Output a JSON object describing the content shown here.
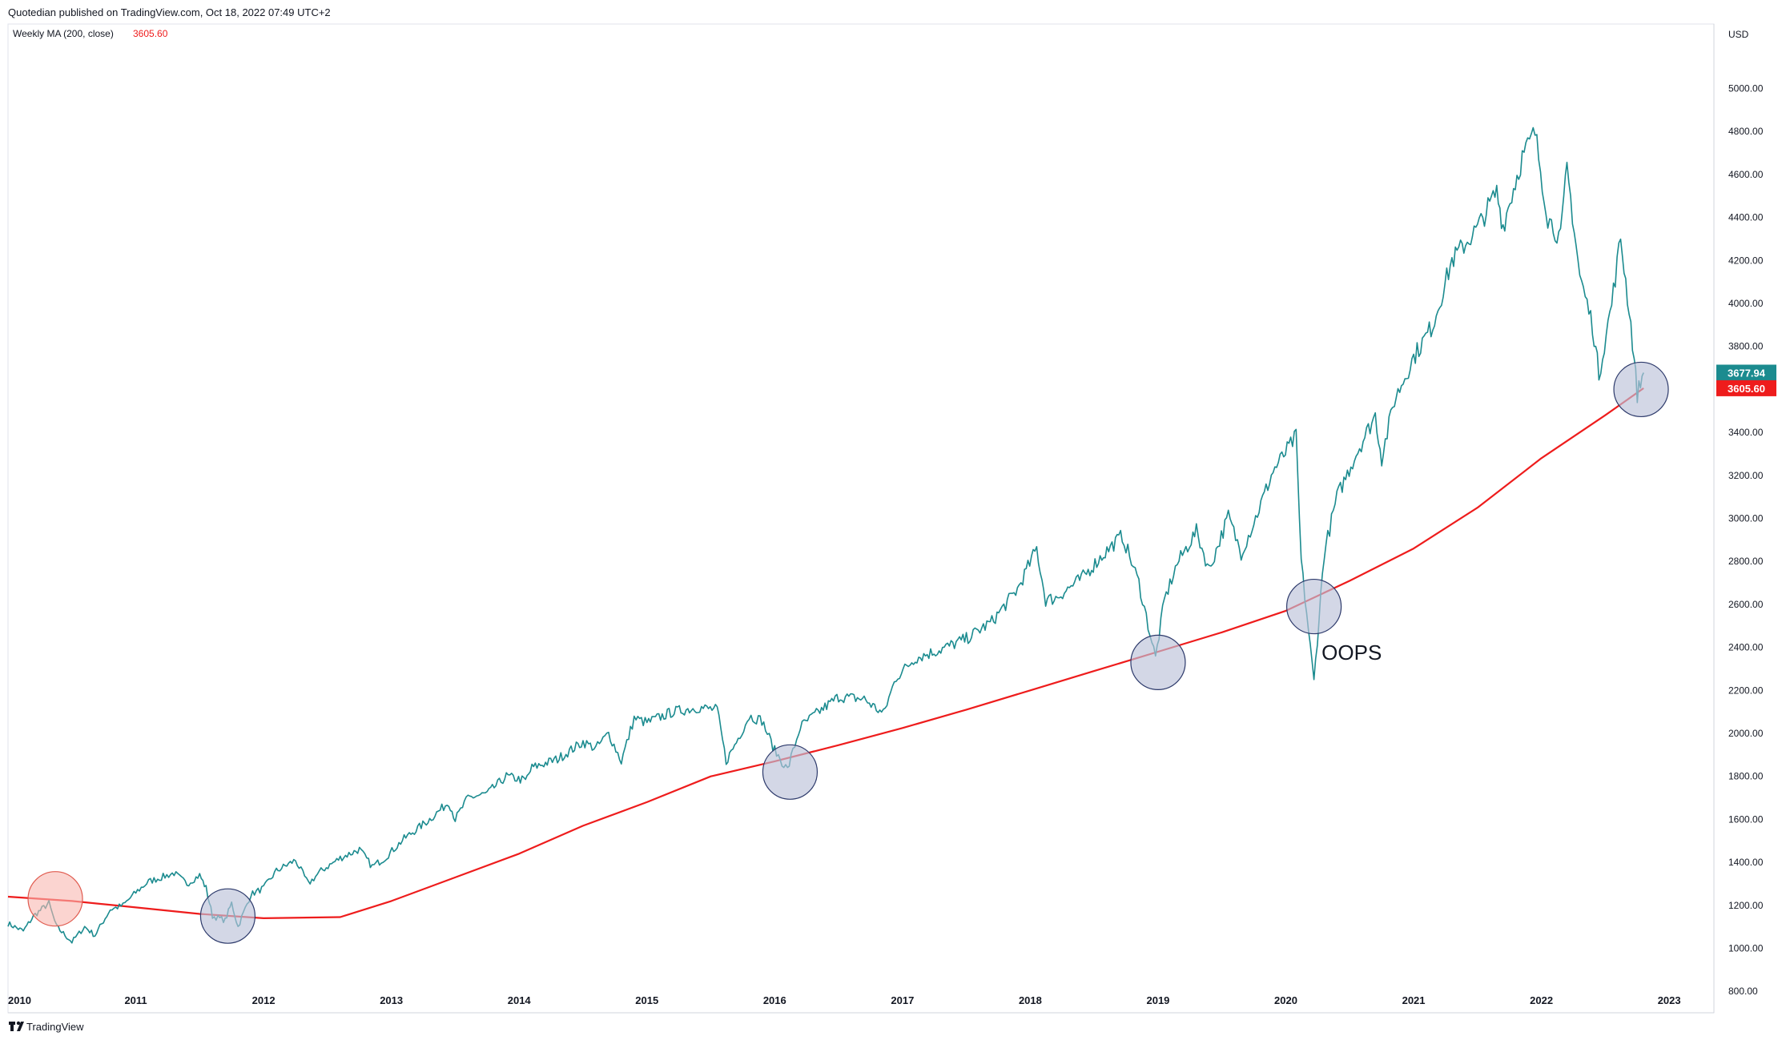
{
  "header": {
    "publisher_text": "Quotedian published on TradingView.com, Oct 18, 2022 07:49 UTC+2",
    "indicator_label": "Weekly MA (200, close)",
    "indicator_value": "3605.60"
  },
  "branding": {
    "logo_text": "TradingView"
  },
  "colors": {
    "price_line": "#1b8b8f",
    "ma_line": "#ee1c1c",
    "circle_fill": "#bcc2d8",
    "circle_stroke": "#2d3a6b",
    "red_circle_fill": "#f8b8b0",
    "red_circle_stroke": "#e05a4e",
    "price_badge": "#1b8b8f",
    "ma_badge": "#ee1c1c"
  },
  "chart_data": {
    "type": "line",
    "currency_label": "USD",
    "x_ticks": [
      "2010",
      "2011",
      "2012",
      "2013",
      "2014",
      "2015",
      "2016",
      "2017",
      "2018",
      "2019",
      "2020",
      "2021",
      "2022",
      "2023"
    ],
    "y_ticks": [
      "800.00",
      "1000.00",
      "1200.00",
      "1400.00",
      "1600.00",
      "1800.00",
      "2000.00",
      "2200.00",
      "2400.00",
      "2600.00",
      "2800.00",
      "3000.00",
      "3200.00",
      "3400.00",
      "3600.00",
      "3800.00",
      "4000.00",
      "4200.00",
      "4400.00",
      "4600.00",
      "4800.00",
      "5000.00"
    ],
    "ylim": [
      700,
      5300
    ],
    "xlim": [
      2010.0,
      2023.35
    ],
    "last_price_label": "3677.94",
    "last_ma_label": "3605.60",
    "series": [
      {
        "role": "price",
        "points": [
          [
            2010.0,
            1115
          ],
          [
            2010.12,
            1080
          ],
          [
            2010.2,
            1150
          ],
          [
            2010.32,
            1210
          ],
          [
            2010.38,
            1100
          ],
          [
            2010.5,
            1030
          ],
          [
            2010.6,
            1100
          ],
          [
            2010.68,
            1060
          ],
          [
            2010.8,
            1180
          ],
          [
            2010.9,
            1200
          ],
          [
            2011.0,
            1260
          ],
          [
            2011.1,
            1310
          ],
          [
            2011.2,
            1330
          ],
          [
            2011.3,
            1350
          ],
          [
            2011.4,
            1300
          ],
          [
            2011.5,
            1340
          ],
          [
            2011.55,
            1280
          ],
          [
            2011.6,
            1150
          ],
          [
            2011.7,
            1130
          ],
          [
            2011.75,
            1210
          ],
          [
            2011.8,
            1100
          ],
          [
            2011.9,
            1250
          ],
          [
            2012.0,
            1280
          ],
          [
            2012.1,
            1360
          ],
          [
            2012.25,
            1410
          ],
          [
            2012.35,
            1300
          ],
          [
            2012.45,
            1360
          ],
          [
            2012.6,
            1420
          ],
          [
            2012.75,
            1460
          ],
          [
            2012.85,
            1380
          ],
          [
            2012.95,
            1420
          ],
          [
            2013.1,
            1510
          ],
          [
            2013.3,
            1600
          ],
          [
            2013.45,
            1680
          ],
          [
            2013.5,
            1600
          ],
          [
            2013.6,
            1700
          ],
          [
            2013.75,
            1720
          ],
          [
            2013.9,
            1800
          ],
          [
            2014.05,
            1780
          ],
          [
            2014.1,
            1840
          ],
          [
            2014.3,
            1880
          ],
          [
            2014.5,
            1960
          ],
          [
            2014.6,
            1930
          ],
          [
            2014.7,
            2000
          ],
          [
            2014.8,
            1870
          ],
          [
            2014.9,
            2070
          ],
          [
            2015.0,
            2050
          ],
          [
            2015.2,
            2100
          ],
          [
            2015.4,
            2120
          ],
          [
            2015.55,
            2110
          ],
          [
            2015.62,
            1870
          ],
          [
            2015.7,
            1960
          ],
          [
            2015.8,
            2080
          ],
          [
            2015.9,
            2060
          ],
          [
            2016.0,
            1920
          ],
          [
            2016.1,
            1830
          ],
          [
            2016.2,
            2030
          ],
          [
            2016.3,
            2080
          ],
          [
            2016.5,
            2170
          ],
          [
            2016.7,
            2160
          ],
          [
            2016.85,
            2090
          ],
          [
            2016.95,
            2260
          ],
          [
            2017.1,
            2350
          ],
          [
            2017.3,
            2390
          ],
          [
            2017.5,
            2440
          ],
          [
            2017.7,
            2520
          ],
          [
            2017.9,
            2670
          ],
          [
            2018.05,
            2860
          ],
          [
            2018.12,
            2620
          ],
          [
            2018.2,
            2630
          ],
          [
            2018.4,
            2720
          ],
          [
            2018.6,
            2850
          ],
          [
            2018.72,
            2920
          ],
          [
            2018.85,
            2700
          ],
          [
            2018.98,
            2350
          ],
          [
            2019.05,
            2620
          ],
          [
            2019.15,
            2790
          ],
          [
            2019.3,
            2940
          ],
          [
            2019.4,
            2760
          ],
          [
            2019.55,
            3010
          ],
          [
            2019.65,
            2840
          ],
          [
            2019.75,
            2980
          ],
          [
            2019.9,
            3220
          ],
          [
            2020.08,
            3380
          ],
          [
            2020.12,
            2800
          ],
          [
            2020.22,
            2240
          ],
          [
            2020.3,
            2840
          ],
          [
            2020.4,
            3100
          ],
          [
            2020.55,
            3300
          ],
          [
            2020.7,
            3480
          ],
          [
            2020.75,
            3280
          ],
          [
            2020.85,
            3550
          ],
          [
            2021.0,
            3750
          ],
          [
            2021.15,
            3900
          ],
          [
            2021.3,
            4200
          ],
          [
            2021.5,
            4350
          ],
          [
            2021.65,
            4520
          ],
          [
            2021.7,
            4360
          ],
          [
            2021.85,
            4680
          ],
          [
            2021.95,
            4796
          ],
          [
            2022.05,
            4400
          ],
          [
            2022.15,
            4300
          ],
          [
            2022.2,
            4630
          ],
          [
            2022.3,
            4130
          ],
          [
            2022.4,
            3900
          ],
          [
            2022.45,
            3670
          ],
          [
            2022.55,
            4000
          ],
          [
            2022.62,
            4305
          ],
          [
            2022.7,
            3900
          ],
          [
            2022.75,
            3580
          ],
          [
            2022.8,
            3677.94
          ]
        ]
      },
      {
        "role": "ma",
        "points": [
          [
            2010.0,
            1240
          ],
          [
            2010.5,
            1220
          ],
          [
            2011.0,
            1190
          ],
          [
            2011.5,
            1160
          ],
          [
            2012.0,
            1140
          ],
          [
            2012.6,
            1145
          ],
          [
            2013.0,
            1220
          ],
          [
            2013.5,
            1330
          ],
          [
            2014.0,
            1440
          ],
          [
            2014.5,
            1570
          ],
          [
            2015.0,
            1680
          ],
          [
            2015.5,
            1800
          ],
          [
            2016.0,
            1870
          ],
          [
            2016.5,
            1945
          ],
          [
            2017.0,
            2025
          ],
          [
            2017.5,
            2110
          ],
          [
            2018.0,
            2200
          ],
          [
            2018.5,
            2290
          ],
          [
            2019.0,
            2380
          ],
          [
            2019.5,
            2470
          ],
          [
            2020.0,
            2570
          ],
          [
            2020.5,
            2710
          ],
          [
            2021.0,
            2860
          ],
          [
            2021.5,
            3050
          ],
          [
            2022.0,
            3280
          ],
          [
            2022.5,
            3480
          ],
          [
            2022.8,
            3605.6
          ]
        ]
      }
    ],
    "annotations": [
      {
        "kind": "circle",
        "tone": "red",
        "x": 2010.37,
        "y": 1230
      },
      {
        "kind": "circle",
        "tone": "blue",
        "x": 2011.72,
        "y": 1150
      },
      {
        "kind": "circle",
        "tone": "blue",
        "x": 2016.12,
        "y": 1820
      },
      {
        "kind": "circle",
        "tone": "blue",
        "x": 2019.0,
        "y": 2330
      },
      {
        "kind": "circle",
        "tone": "blue",
        "x": 2020.22,
        "y": 2590
      },
      {
        "kind": "circle",
        "tone": "blue",
        "x": 2022.78,
        "y": 3600
      },
      {
        "kind": "text",
        "text": "OOPS",
        "x": 2020.28,
        "y": 2380
      }
    ]
  }
}
